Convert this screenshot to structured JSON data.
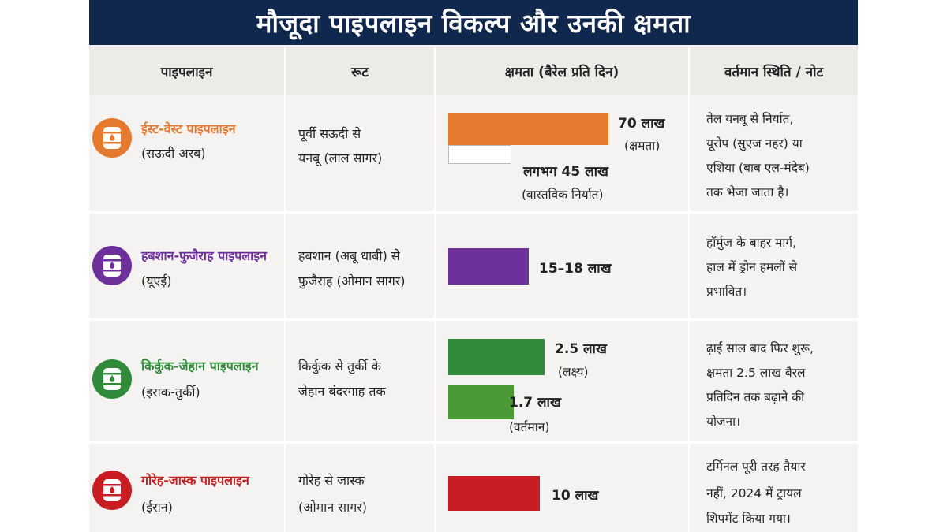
{
  "title": "मौजूदा पाइपलाइन विकल्प और उनकी क्षमता",
  "headers": {
    "pipeline": "पाइपलाइन",
    "route": "रूट",
    "capacity": "क्षमता (बैरेल प्रति दिन)",
    "status": "वर्तमान स्थिति / नोट"
  },
  "colors": {
    "east_west": "#e57a2f",
    "habshan": "#6d2f9a",
    "kirkuk": "#2f8a3a",
    "kirkuk_current": "#4c9a36",
    "goreh": "#c81e23",
    "title_bg": "#10284e"
  },
  "rows": [
    {
      "name": "ईस्ट-वेस्ट पाइपलाइन",
      "country": "(सऊदी अरब)",
      "icon": "oil-barrel-icon",
      "route": [
        "पूर्वी सऊदी से",
        "यनबू (लाल सागर)"
      ],
      "bars": [
        {
          "label": "70 लाख",
          "sub": "(क्षमता)"
        },
        {
          "label": "लगभग 45 लाख",
          "sub": "(वास्तविक निर्यात)"
        }
      ],
      "note": [
        "तेल यनबू से निर्यात,",
        "यूरोप (सुएज नहर) या",
        "एशिया (बाब एल-मंदेब)",
        "तक भेजा जाता है।"
      ]
    },
    {
      "name": "हबशान-फुजैराह पाइपलाइन",
      "country": "(यूएई)",
      "icon": "oil-barrel-icon",
      "route": [
        "हबशान (अबू धाबी) से",
        "फुजैराह (ओमान सागर)"
      ],
      "bars": [
        {
          "label": "15–18 लाख"
        }
      ],
      "note": [
        "हॉर्मुज के बाहर मार्ग,",
        "हाल में ड्रोन हमलों से",
        "प्रभावित।"
      ]
    },
    {
      "name": "किर्कुक-जेहान पाइपलाइन",
      "country": "(इराक-तुर्की)",
      "icon": "oil-barrel-icon",
      "route": [
        "किर्कुक से तुर्की के",
        "जेहान बंदरगाह तक"
      ],
      "bars": [
        {
          "label": "2.5 लाख",
          "sub": "(लक्ष्य)"
        },
        {
          "label": "1.7 लाख",
          "sub": "(वर्तमान)"
        }
      ],
      "note": [
        "ढ़ाई साल बाद फिर शुरू,",
        "क्षमता 2.5 लाख बैरल",
        "प्रतिदिन तक बढ़ाने की",
        "योजना।"
      ]
    },
    {
      "name": "गोरेह-जास्क पाइपलाइन",
      "country": "(ईरान)",
      "icon": "oil-barrel-icon",
      "route": [
        "गोरेह से जास्क",
        "(ओमान सागर)"
      ],
      "bars": [
        {
          "label": "10 लाख"
        }
      ],
      "note": [
        "टर्मिनल पूरी तरह तैयार",
        "नहीं, 2024 में ट्रायल",
        "शिपमेंट किया गया।"
      ]
    }
  ],
  "chart_data": {
    "type": "bar",
    "categories": [
      "ईस्ट-वेस्ट पाइपलाइन",
      "हबशान-फुजैराह पाइपलाइन",
      "किर्कुक-जेहान पाइपलाइन",
      "गोरेह-जास्क पाइपलाइन"
    ],
    "series": [
      {
        "name": "क्षमता",
        "values": [
          7000000,
          1800000,
          250000,
          1000000
        ]
      },
      {
        "name": "वास्तविक",
        "values": [
          4500000,
          null,
          170000,
          null
        ]
      }
    ],
    "ylabel": "क्षमता (बैरेल प्रति दिन)",
    "grid": false
  }
}
